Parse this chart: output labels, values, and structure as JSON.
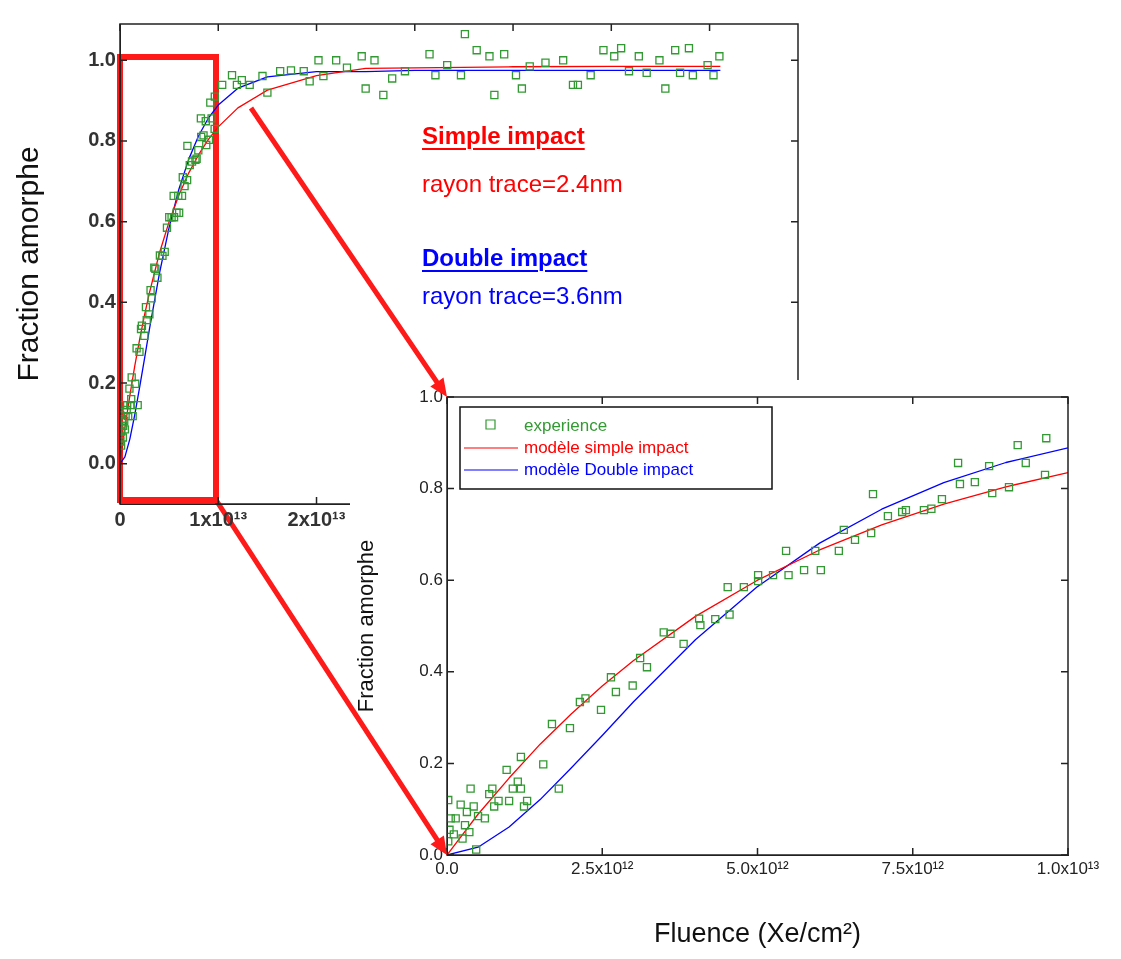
{
  "chart_data": [
    {
      "type": "scatter",
      "ylabel": "Fraction amorphe",
      "xlim": [
        0,
        69000000000000.0
      ],
      "ylim": [
        -0.1,
        1.09
      ],
      "xticks": [
        {
          "value": 0,
          "label": "0"
        },
        {
          "value": 10000000000000.0,
          "label": "1x10¹³"
        },
        {
          "value": 20000000000000.0,
          "label": "2x10¹³"
        },
        {
          "value": 30000000000000.0,
          "label": null
        },
        {
          "value": 40000000000000.0,
          "label": null
        },
        {
          "value": 50000000000000.0,
          "label": null
        },
        {
          "value": 60000000000000.0,
          "label": null
        }
      ],
      "yticks": [
        {
          "value": 0,
          "label": "0.0"
        },
        {
          "value": 0.2,
          "label": "0.2"
        },
        {
          "value": 0.4,
          "label": "0.4"
        },
        {
          "value": 0.6,
          "label": "0.6"
        },
        {
          "value": 0.8,
          "label": "0.8"
        },
        {
          "value": 1,
          "label": "1.0"
        }
      ],
      "legend": false,
      "annotations": [
        "Simple impact",
        "rayon trace=2.4nm",
        "Double impact",
        "rayon trace=3.6nm"
      ],
      "series": [
        {
          "type": "scatter",
          "marker": "square",
          "color": "#339933",
          "x": [
            20000000000.0,
            60000000000.0,
            40000000000.0,
            110000000000.0,
            140000000000.0,
            220000000000.0,
            290000000000.0,
            320000000000.0,
            380000000000.0,
            430000000000.0,
            500000000000.0,
            680000000000.0,
            730000000000.0,
            830000000000.0,
            960000000000.0,
            1060000000000.0,
            1140000000000.0,
            1190000000000.0,
            1290000000000.0,
            1550000000000.0,
            1690000000000.0,
            1800000000000.0,
            1980000000000.0,
            2140000000000.0,
            2230000000000.0,
            2480000000000.0,
            2640000000000.0,
            2720000000000.0,
            2990000000000.0,
            3110000000000.0,
            3220000000000.0,
            3490000000000.0,
            3600000000000.0,
            3810000000000.0,
            4060000000000.0,
            4320000000000.0,
            4550000000000.0,
            4780000000000.0,
            5010000000000.0,
            5250000000000.0,
            5500000000000.0,
            5460000000000.0,
            5750000000000.0,
            5930000000000.0,
            6020000000000.0,
            6310000000000.0,
            6390000000000.0,
            6570000000000.0,
            6830000000000.0,
            6860000000000.0,
            7100000000000.0,
            7330000000000.0,
            7680000000000.0,
            7800000000000.0,
            7970000000000.0,
            8230000000000.0,
            8260000000000.0,
            8500000000000.0,
            8730000000000.0,
            8780000000000.0,
            9050000000000.0,
            9190000000000.0,
            9320000000000.0,
            9630000000000.0,
            9650000000000.0,
            10400000000000.0,
            11400000000000.0,
            11900000000000.0,
            12400000000000.0,
            13200000000000.0,
            14500000000000.0,
            15000000000000.0,
            16300000000000.0,
            17400000000000.0,
            18700000000000.0,
            19300000000000.0,
            20200000000000.0,
            20700000000000.0,
            22000000000000.0,
            23100000000000.0,
            24600000000000.0,
            25000000000000.0,
            25900000000000.0,
            26800000000000.0,
            27700000000000.0,
            29000000000000.0,
            31500000000000.0,
            32100000000000.0,
            33300000000000.0,
            34700000000000.0,
            35100000000000.0,
            36300000000000.0,
            37600000000000.0,
            38100000000000.0,
            39100000000000.0,
            40300000000000.0,
            40900000000000.0,
            41700000000000.0,
            43300000000000.0,
            45100000000000.0,
            46100000000000.0,
            46600000000000.0,
            47900000000000.0,
            49200000000000.0,
            50300000000000.0,
            51000000000000.0,
            51800000000000.0,
            52800000000000.0,
            53600000000000.0,
            54900000000000.0,
            55500000000000.0,
            56500000000000.0,
            57000000000000.0,
            57900000000000.0,
            58300000000000.0,
            59800000000000.0,
            61000000000000.0,
            60400000000000.0
          ],
          "values": [
            0.12,
            0.08,
            0.055,
            0.045,
            0.08,
            0.11,
            0.065,
            0.094,
            0.145,
            0.106,
            0.085,
            0.133,
            0.145,
            0.118,
            0.186,
            0.145,
            0.16,
            0.214,
            0.118,
            0.198,
            0.286,
            0.145,
            0.277,
            0.334,
            0.342,
            0.317,
            0.388,
            0.356,
            0.37,
            0.43,
            0.41,
            0.486,
            0.483,
            0.461,
            0.516,
            0.515,
            0.525,
            0.585,
            0.611,
            0.611,
            0.611,
            0.664,
            0.622,
            0.664,
            0.622,
            0.664,
            0.71,
            0.688,
            0.703,
            0.788,
            0.74,
            0.749,
            0.753,
            0.756,
            0.777,
            0.856,
            0.81,
            0.814,
            0.849,
            0.79,
            0.803,
            0.895,
            0.856,
            0.83,
            0.91,
            0.939,
            0.963,
            0.939,
            0.951,
            0.939,
            0.961,
            0.92,
            0.973,
            0.975,
            0.973,
            0.948,
            1.0,
            0.961,
            1.0,
            0.982,
            1.01,
            0.93,
            1.0,
            0.914,
            0.955,
            0.973,
            1.015,
            0.963,
            0.988,
            0.963,
            1.065,
            1.025,
            1.01,
            0.914,
            1.015,
            0.963,
            0.93,
            0.985,
            0.994,
            1.0,
            0.939,
            0.939,
            0.963,
            1.025,
            1.01,
            1.03,
            0.973,
            1.01,
            0.969,
            1.0,
            0.93,
            1.025,
            0.969,
            1.03,
            0.963,
            0.988,
            1.01,
            0.963
          ]
        },
        {
          "type": "line",
          "marker": "none",
          "color": "#ff0000",
          "x": [
            0,
            500000000000.0,
            1000000000000.0,
            1500000000000.0,
            2000000000000.0,
            2500000000000.0,
            3000000000000.0,
            4000000000000.0,
            5000000000000.0,
            6000000000000.0,
            7000000000000.0,
            8000000000000.0,
            9000000000000.0,
            10000000000000.0,
            12000000000000.0,
            15000000000000.0,
            20000000000000.0,
            25000000000000.0,
            30000000000000.0,
            40000000000000.0,
            50000000000000.0,
            61100000000000.0
          ],
          "values": [
            0,
            0.089,
            0.168,
            0.242,
            0.308,
            0.369,
            0.424,
            0.521,
            0.6,
            0.666,
            0.721,
            0.766,
            0.804,
            0.835,
            0.882,
            0.926,
            0.962,
            0.98,
            0.981,
            0.984,
            0.985,
            0.985
          ]
        },
        {
          "type": "line",
          "marker": "none",
          "color": "#0000ff",
          "x": [
            0,
            500000000000.0,
            1000000000000.0,
            1500000000000.0,
            2000000000000.0,
            2500000000000.0,
            3000000000000.0,
            4000000000000.0,
            5000000000000.0,
            6000000000000.0,
            7000000000000.0,
            8000000000000.0,
            9000000000000.0,
            10000000000000.0,
            12000000000000.0,
            15000000000000.0,
            20000000000000.0,
            25000000000000.0,
            30000000000000.0,
            40000000000000.0,
            50000000000000.0,
            61100000000000.0
          ],
          "values": [
            0,
            0.017,
            0.061,
            0.121,
            0.19,
            0.261,
            0.334,
            0.47,
            0.586,
            0.681,
            0.755,
            0.813,
            0.857,
            0.889,
            0.931,
            0.959,
            0.972,
            0.972,
            0.975,
            0.975,
            0.975,
            0.975
          ]
        }
      ]
    },
    {
      "type": "scatter",
      "xlabel": "Fluence (Xe/cm²)",
      "ylabel": "Fraction amorphe",
      "xlim": [
        0,
        10000000000000.0
      ],
      "ylim": [
        0,
        1
      ],
      "xticks": [
        {
          "value": 0,
          "label": "0.0"
        },
        {
          "value": 2500000000000.0,
          "label": "2.5x10¹²"
        },
        {
          "value": 5000000000000.0,
          "label": "5.0x10¹²"
        },
        {
          "value": 7500000000000.0,
          "label": "7.5x10¹²"
        },
        {
          "value": 10000000000000.0,
          "label": "1.0x10¹³"
        }
      ],
      "yticks": [
        {
          "value": 0,
          "label": "0.0"
        },
        {
          "value": 0.2,
          "label": "0.2"
        },
        {
          "value": 0.4,
          "label": "0.4"
        },
        {
          "value": 0.6,
          "label": "0.6"
        },
        {
          "value": 0.8,
          "label": "0.8"
        },
        {
          "value": 1,
          "label": "1.0"
        }
      ],
      "legend": "top left",
      "series": [
        {
          "type": "scatter",
          "marker": "square",
          "name": "experience",
          "color": "#339933",
          "x": [
            20000000000.0,
            60000000000.0,
            40000000000.0,
            20000000000.0,
            110000000000.0,
            140000000000.0,
            220000000000.0,
            250000000000.0,
            290000000000.0,
            320000000000.0,
            360000000000.0,
            380000000000.0,
            430000000000.0,
            470000000000.0,
            500000000000.0,
            610000000000.0,
            680000000000.0,
            730000000000.0,
            760000000000.0,
            830000000000.0,
            960000000000.0,
            1000000000000.0,
            1060000000000.0,
            1140000000000.0,
            1190000000000.0,
            1190000000000.0,
            1240000000000.0,
            1290000000000.0,
            1550000000000.0,
            1690000000000.0,
            1800000000000.0,
            1980000000000.0,
            2140000000000.0,
            2230000000000.0,
            2480000000000.0,
            2640000000000.0,
            2720000000000.0,
            2990000000000.0,
            3110000000000.0,
            3220000000000.0,
            3490000000000.0,
            3600000000000.0,
            3810000000000.0,
            4060000000000.0,
            4080000000000.0,
            4320000000000.0,
            4550000000000.0,
            4520000000000.0,
            4780000000000.0,
            5010000000000.0,
            5010000000000.0,
            5250000000000.0,
            5500000000000.0,
            5460000000000.0,
            5750000000000.0,
            5930000000000.0,
            6020000000000.0,
            6310000000000.0,
            6390000000000.0,
            6570000000000.0,
            6830000000000.0,
            6860000000000.0,
            7100000000000.0,
            7330000000000.0,
            7390000000000.0,
            7680000000000.0,
            7800000000000.0,
            7970000000000.0,
            8230000000000.0,
            8260000000000.0,
            8500000000000.0,
            8730000000000.0,
            8780000000000.0,
            9050000000000.0,
            9190000000000.0,
            9320000000000.0,
            9630000000000.0,
            9650000000000.0
          ],
          "values": [
            0.12,
            0.08,
            0.055,
            0.03,
            0.045,
            0.08,
            0.11,
            0.036,
            0.065,
            0.094,
            0.05,
            0.145,
            0.106,
            0.012,
            0.085,
            0.08,
            0.133,
            0.145,
            0.106,
            0.118,
            0.186,
            0.118,
            0.145,
            0.16,
            0.145,
            0.214,
            0.106,
            0.118,
            0.198,
            0.286,
            0.145,
            0.277,
            0.334,
            0.342,
            0.317,
            0.388,
            0.356,
            0.37,
            0.43,
            0.41,
            0.486,
            0.483,
            0.461,
            0.516,
            0.502,
            0.515,
            0.525,
            0.585,
            0.585,
            0.611,
            0.598,
            0.611,
            0.611,
            0.664,
            0.622,
            0.664,
            0.622,
            0.664,
            0.71,
            0.688,
            0.703,
            0.788,
            0.74,
            0.749,
            0.753,
            0.753,
            0.756,
            0.777,
            0.856,
            0.81,
            0.814,
            0.849,
            0.79,
            0.803,
            0.895,
            0.856,
            0.83,
            0.91
          ]
        },
        {
          "type": "line",
          "marker": "none",
          "name": "modèle simple impact",
          "color": "#ff0000",
          "x": [
            0,
            500000000000.0,
            1000000000000.0,
            1500000000000.0,
            2000000000000.0,
            2500000000000.0,
            3000000000000.0,
            4000000000000.0,
            5000000000000.0,
            6000000000000.0,
            7000000000000.0,
            8000000000000.0,
            9000000000000.0,
            10000000000000.0
          ],
          "values": [
            0,
            0.089,
            0.168,
            0.242,
            0.308,
            0.369,
            0.424,
            0.521,
            0.6,
            0.666,
            0.721,
            0.766,
            0.804,
            0.835
          ]
        },
        {
          "type": "line",
          "marker": "none",
          "name": "modèle Double impact",
          "color": "#0000ff",
          "x": [
            0,
            500000000000.0,
            1000000000000.0,
            1500000000000.0,
            2000000000000.0,
            2500000000000.0,
            3000000000000.0,
            4000000000000.0,
            5000000000000.0,
            6000000000000.0,
            7000000000000.0,
            8000000000000.0,
            9000000000000.0,
            10000000000000.0
          ],
          "values": [
            0,
            0.017,
            0.061,
            0.121,
            0.19,
            0.261,
            0.334,
            0.47,
            0.586,
            0.681,
            0.755,
            0.813,
            0.857,
            0.889
          ]
        }
      ]
    }
  ]
}
